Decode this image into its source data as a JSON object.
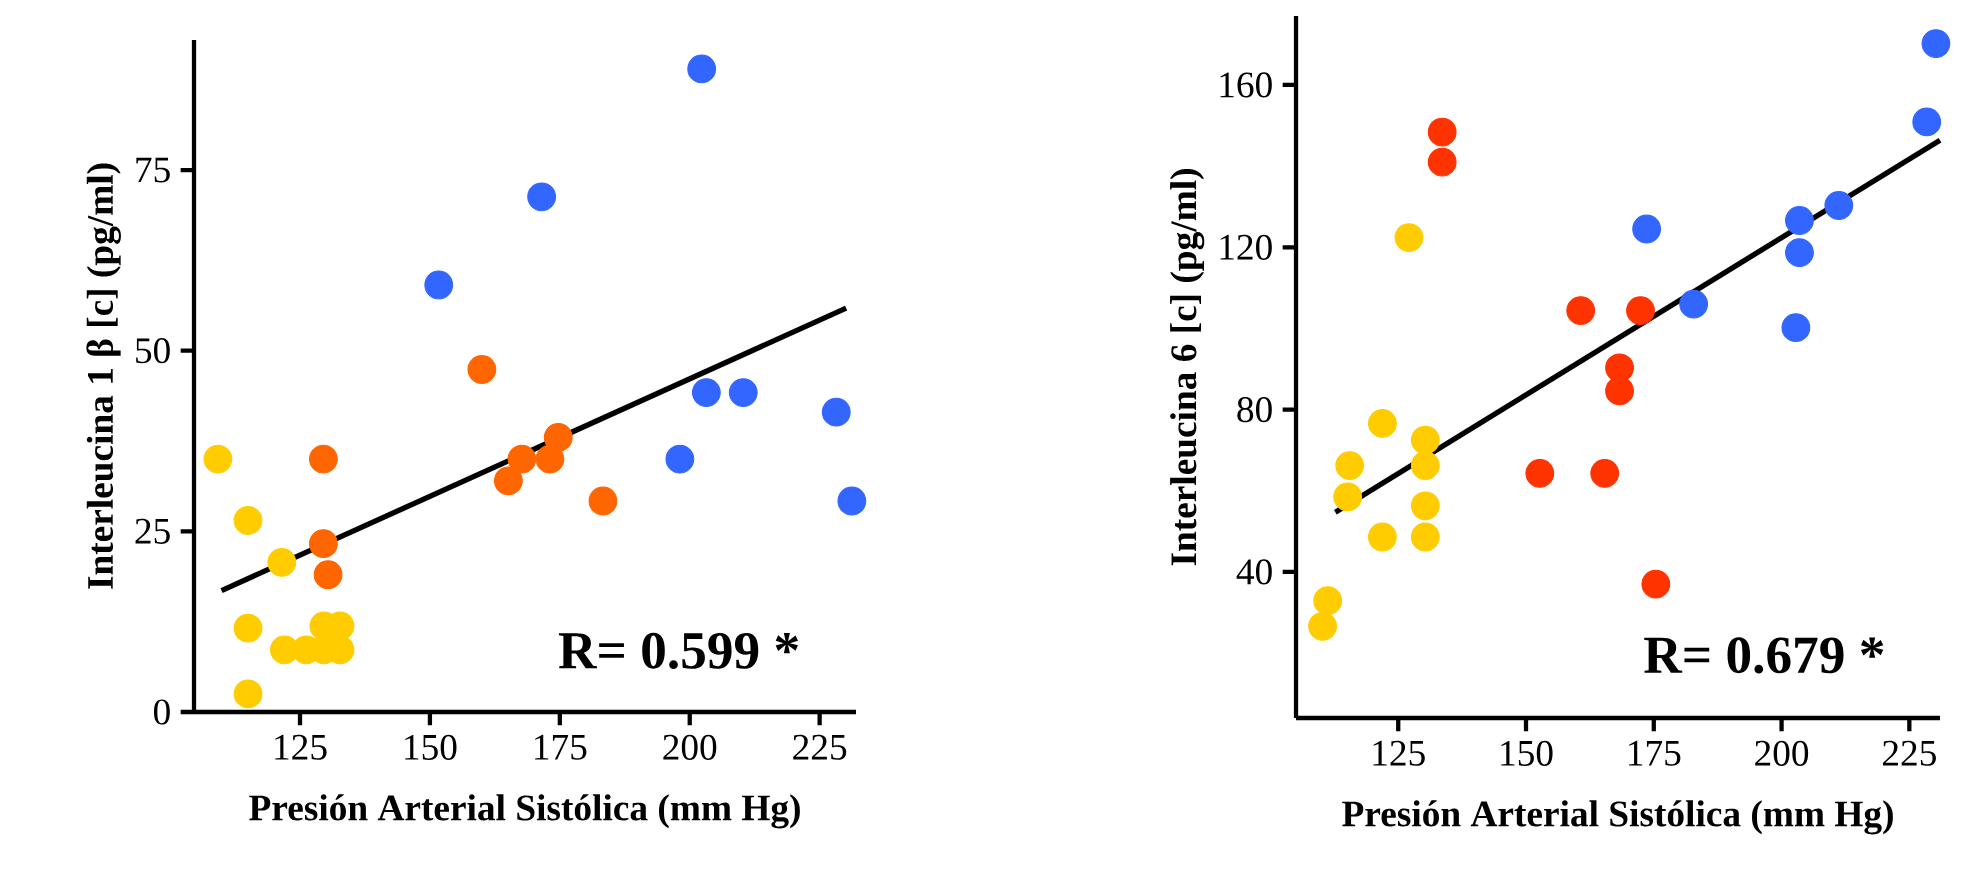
{
  "chart_data": [
    {
      "type": "scatter",
      "xlabel": "Presión Arterial Sistólica (mm Hg)",
      "ylabel": "Interleucina 1 β [c] (pg/ml)",
      "annotations": [
        "R= 0.599 *"
      ],
      "marker": "circle",
      "xlim": [
        104.6,
        232
      ],
      "ylim": [
        0,
        93
      ],
      "xticks": [
        125,
        150,
        175,
        200,
        225
      ],
      "yticks": [
        0,
        25,
        50,
        75
      ],
      "series": [
        {
          "color": "#ffcc00",
          "x": [
            109.2,
            115,
            121.5,
            115,
            115,
            122,
            126.2,
            129.6,
            132.7,
            129.6,
            132.7
          ],
          "values": [
            35,
            26.5,
            20.7,
            11.6,
            2.5,
            8.6,
            8.6,
            8.6,
            8.6,
            11.9,
            11.9
          ]
        },
        {
          "color": "#ff6600",
          "x": [
            129.5,
            129.5,
            130.4,
            160,
            165.1,
            167.7,
            173.1,
            174.7,
            183.3
          ],
          "values": [
            35,
            23.3,
            19,
            47.4,
            32,
            35,
            35,
            38,
            29.2
          ]
        },
        {
          "color": "#3366ff",
          "x": [
            151.7,
            171.5,
            202.3,
            203.2,
            210.3,
            198.1,
            228.2,
            231.2
          ],
          "values": [
            59.1,
            71.3,
            89,
            44.2,
            44.2,
            35,
            41.5,
            29.2
          ]
        },
        {
          "type": "line",
          "marker": "none",
          "color": "#000000",
          "x": [
            109.9,
            230.1
          ],
          "values": [
            16.8,
            55.9
          ]
        }
      ]
    },
    {
      "type": "scatter",
      "xlabel": "Presión Arterial Sistólica (mm Hg)",
      "ylabel": "Interleucina 6 [c] (pg/ml)",
      "annotations": [
        "R= 0.679 *"
      ],
      "marker": "circle",
      "xlim": [
        105,
        231
      ],
      "ylim": [
        4,
        177
      ],
      "xticks": [
        125,
        150,
        175,
        200,
        225
      ],
      "yticks": [
        40,
        80,
        120,
        160
      ],
      "series": [
        {
          "color": "#ffcc00",
          "x": [
            111.2,
            110.2,
            115.5,
            115.1,
            121.9,
            121.9,
            127.1,
            130.3,
            130.3,
            130.3,
            130.3
          ],
          "values": [
            32.9,
            26.6,
            66.2,
            58.5,
            76.6,
            48.6,
            122.4,
            72.5,
            66.2,
            56.3,
            48.6
          ]
        },
        {
          "color": "#ff3300",
          "x": [
            133.6,
            133.6,
            152.7,
            160.7,
            165.4,
            168.3,
            168.3,
            172.4,
            175.4
          ],
          "values": [
            148.4,
            141,
            64.3,
            104.4,
            64.3,
            90.3,
            84.6,
            104.4,
            37
          ]
        },
        {
          "color": "#3366ff",
          "x": [
            173.6,
            182.8,
            202.8,
            203.5,
            203.5,
            211.2,
            228.4,
            230.2
          ],
          "values": [
            124.5,
            106,
            100.2,
            118.7,
            126.6,
            130.3,
            150.9,
            170.2
          ]
        },
        {
          "type": "line",
          "marker": "none",
          "color": "#000000",
          "x": [
            112.7,
            231
          ],
          "values": [
            54.7,
            146.4
          ]
        }
      ]
    }
  ]
}
